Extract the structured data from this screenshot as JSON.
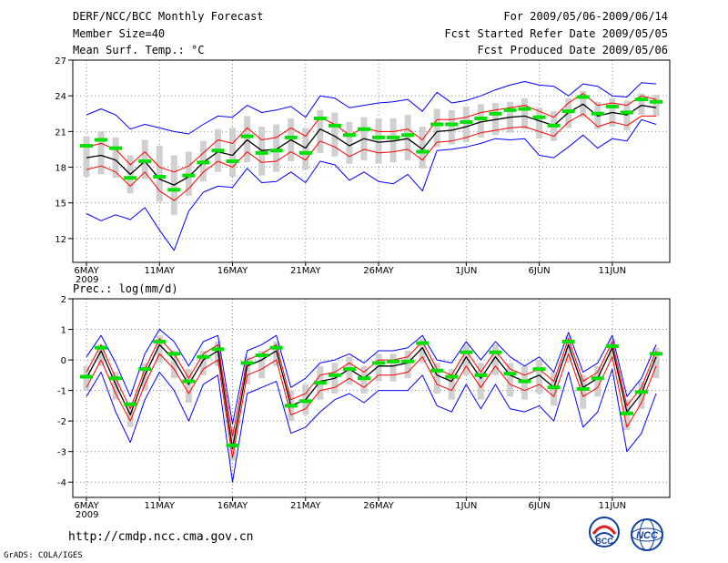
{
  "header": {
    "title": "DERF/NCC/BCC Monthly Forecast",
    "member": "Member Size=40",
    "variable": "Mean Surf. Temp.: °C",
    "forecast_range": "For 2009/05/06-2009/06/14",
    "refer_date": "Fcst Started Refer Date 2009/05/05",
    "produced_date": "Fcst Produced Date 2009/05/06"
  },
  "panel2_title": "Prec.: log(mm/d)",
  "footer": {
    "url": "http://cmdp.ncc.cma.gov.cn",
    "grads": "GrADS: COLA/IGES",
    "logo1": "BCC",
    "logo2": "NCC"
  },
  "colors": {
    "mean": "#000000",
    "std_band": "#ff0000",
    "envelope": "#0000ff",
    "ensemble_bar": "#d0d0d0",
    "observed": "#00e000"
  },
  "chart_data": [
    {
      "type": "line",
      "title": "Mean Surf. Temp.: °C",
      "x": [
        1,
        2,
        3,
        4,
        5,
        6,
        7,
        8,
        9,
        10,
        11,
        12,
        13,
        14,
        15,
        16,
        17,
        18,
        19,
        20,
        21,
        22,
        23,
        24,
        25,
        26,
        27,
        28,
        29,
        30,
        31,
        32,
        33,
        34,
        35,
        36,
        37,
        38,
        39,
        40
      ],
      "xticks": [
        "6MAY\n2009",
        "11MAY",
        "16MAY",
        "21MAY",
        "26MAY",
        "1JUN",
        "6JUN",
        "11JUN"
      ],
      "xtick_days": [
        1,
        6,
        11,
        16,
        21,
        27,
        32,
        37
      ],
      "ylim": [
        10,
        27
      ],
      "yticks": [
        12,
        15,
        18,
        21,
        24,
        27
      ],
      "grid": true,
      "series": [
        {
          "name": "ensemble_mean",
          "values": [
            18.8,
            19.0,
            18.6,
            17.4,
            18.5,
            17.0,
            16.5,
            17.2,
            18.4,
            19.3,
            19.0,
            20.3,
            19.4,
            19.5,
            20.3,
            19.6,
            21.2,
            20.6,
            19.8,
            20.4,
            20.1,
            20.2,
            20.4,
            19.5,
            21.0,
            21.1,
            21.4,
            21.8,
            22.0,
            22.2,
            22.3,
            21.9,
            21.5,
            22.6,
            23.3,
            22.3,
            22.6,
            22.4,
            23.2,
            23.0
          ]
        },
        {
          "name": "upper_std",
          "values": [
            19.7,
            20.0,
            19.5,
            18.2,
            19.3,
            18.0,
            17.6,
            18.1,
            19.2,
            20.3,
            20.0,
            21.3,
            20.3,
            20.5,
            21.3,
            20.6,
            22.2,
            21.6,
            20.7,
            21.3,
            21.0,
            21.0,
            21.2,
            20.3,
            22.0,
            22.0,
            22.2,
            22.6,
            22.8,
            23.0,
            23.2,
            22.7,
            22.2,
            23.4,
            24.2,
            23.2,
            23.4,
            23.2,
            24.0,
            23.7
          ]
        },
        {
          "name": "lower_std",
          "values": [
            17.8,
            18.1,
            17.6,
            16.4,
            17.6,
            16.0,
            15.2,
            16.2,
            17.6,
            18.5,
            18.0,
            19.3,
            18.4,
            18.5,
            19.3,
            18.6,
            20.2,
            19.7,
            18.9,
            19.5,
            19.2,
            19.3,
            19.5,
            18.6,
            20.1,
            20.2,
            20.5,
            20.9,
            21.1,
            21.3,
            21.4,
            21.0,
            20.6,
            21.8,
            22.5,
            21.4,
            21.8,
            21.5,
            22.3,
            22.3
          ]
        },
        {
          "name": "upper_envelope",
          "values": [
            22.4,
            22.9,
            22.4,
            21.2,
            21.6,
            21.3,
            21.0,
            20.8,
            21.6,
            22.3,
            22.2,
            23.2,
            22.6,
            22.8,
            23.1,
            22.2,
            24.0,
            23.8,
            23.0,
            23.2,
            23.4,
            23.5,
            23.7,
            22.7,
            24.3,
            23.4,
            23.6,
            24.0,
            24.5,
            24.9,
            25.2,
            24.9,
            24.8,
            24.0,
            25.0,
            24.8,
            24.0,
            23.9,
            25.1,
            25.0
          ]
        },
        {
          "name": "lower_envelope",
          "values": [
            14.1,
            13.5,
            14.0,
            13.6,
            14.6,
            12.7,
            11.0,
            14.3,
            15.9,
            16.4,
            16.3,
            17.9,
            16.7,
            16.8,
            17.6,
            16.7,
            18.5,
            18.2,
            16.9,
            17.6,
            16.8,
            16.6,
            17.4,
            16.0,
            19.4,
            19.5,
            19.7,
            20.0,
            20.4,
            20.3,
            20.4,
            19.0,
            18.8,
            19.7,
            20.7,
            19.6,
            20.4,
            20.2,
            22.0,
            21.6
          ]
        },
        {
          "name": "ensemble_range_top",
          "values": [
            20.6,
            21.0,
            20.5,
            19.0,
            20.3,
            19.8,
            19.0,
            19.3,
            20.2,
            21.2,
            21.3,
            22.3,
            21.4,
            21.6,
            22.1,
            21.3,
            22.8,
            22.6,
            21.8,
            22.2,
            22.1,
            22.1,
            22.4,
            21.4,
            22.9,
            22.8,
            23.1,
            23.3,
            23.4,
            23.5,
            23.8,
            23.0,
            22.7,
            23.8,
            24.4,
            23.5,
            23.8,
            23.6,
            24.2,
            24.1
          ]
        },
        {
          "name": "ensemble_range_bottom",
          "values": [
            17.2,
            17.4,
            17.1,
            15.8,
            17.0,
            15.1,
            14.0,
            15.6,
            16.8,
            17.6,
            17.2,
            18.4,
            17.3,
            17.6,
            18.5,
            17.8,
            19.2,
            18.9,
            18.3,
            18.6,
            18.3,
            18.4,
            18.6,
            17.9,
            19.7,
            19.9,
            20.1,
            20.5,
            20.7,
            20.9,
            21.2,
            20.4,
            20.2,
            21.3,
            22.2,
            21.2,
            21.4,
            21.1,
            22.4,
            22.3
          ]
        },
        {
          "name": "observed",
          "values": [
            19.8,
            20.3,
            19.6,
            17.1,
            18.5,
            17.2,
            16.1,
            17.3,
            18.4,
            19.4,
            18.5,
            20.6,
            19.2,
            19.4,
            20.5,
            19.2,
            22.1,
            21.5,
            20.7,
            21.2,
            20.5,
            20.5,
            20.7,
            19.3,
            21.6,
            21.6,
            21.8,
            22.1,
            22.5,
            22.8,
            22.9,
            22.2,
            21.5,
            22.7,
            23.9,
            22.5,
            23.1,
            22.6,
            23.7,
            23.5
          ]
        }
      ]
    },
    {
      "type": "line",
      "title": "Prec.: log(mm/d)",
      "x": [
        1,
        2,
        3,
        4,
        5,
        6,
        7,
        8,
        9,
        10,
        11,
        12,
        13,
        14,
        15,
        16,
        17,
        18,
        19,
        20,
        21,
        22,
        23,
        24,
        25,
        26,
        27,
        28,
        29,
        30,
        31,
        32,
        33,
        34,
        35,
        36,
        37,
        38,
        39,
        40
      ],
      "xticks": [
        "6MAY\n2009",
        "11MAY",
        "16MAY",
        "21MAY",
        "26MAY",
        "1JUN",
        "6JUN",
        "11JUN"
      ],
      "xtick_days": [
        1,
        6,
        11,
        16,
        21,
        27,
        32,
        37
      ],
      "ylim": [
        -4.5,
        2
      ],
      "yticks": [
        -4,
        -3,
        -2,
        -1,
        0,
        1,
        2
      ],
      "grid": true,
      "series": [
        {
          "name": "ensemble_mean",
          "values": [
            -0.6,
            0.3,
            -0.8,
            -1.8,
            -0.5,
            0.5,
            0.0,
            -0.8,
            0.0,
            0.3,
            -2.9,
            -0.2,
            0.0,
            0.3,
            -1.5,
            -1.3,
            -0.7,
            -0.6,
            -0.3,
            -0.6,
            -0.2,
            -0.2,
            -0.1,
            0.4,
            -0.5,
            -0.7,
            0.1,
            -0.6,
            0.1,
            -0.5,
            -0.7,
            -0.5,
            -0.9,
            0.5,
            -0.9,
            -0.6,
            0.4,
            -1.7,
            -1.1,
            0.1
          ]
        },
        {
          "name": "upper_std",
          "values": [
            -0.4,
            0.5,
            -0.6,
            -1.6,
            -0.3,
            0.7,
            0.2,
            -0.6,
            0.2,
            0.5,
            -2.5,
            0.0,
            0.2,
            0.5,
            -1.3,
            -1.1,
            -0.5,
            -0.4,
            -0.1,
            -0.4,
            0.0,
            0.0,
            0.1,
            0.6,
            -0.3,
            -0.5,
            0.3,
            -0.4,
            0.3,
            -0.3,
            -0.5,
            -0.3,
            -0.7,
            0.7,
            -0.7,
            -0.4,
            0.6,
            -1.5,
            -0.9,
            0.3
          ]
        },
        {
          "name": "lower_std",
          "values": [
            -0.9,
            0.0,
            -1.1,
            -2.0,
            -0.8,
            0.2,
            -0.3,
            -1.1,
            -0.3,
            0.0,
            -3.2,
            -0.5,
            -0.3,
            0.0,
            -1.8,
            -1.6,
            -1.0,
            -0.9,
            -0.6,
            -0.9,
            -0.5,
            -0.5,
            -0.4,
            0.1,
            -0.8,
            -1.0,
            -0.2,
            -0.9,
            -0.2,
            -0.8,
            -1.0,
            -0.8,
            -1.2,
            0.2,
            -1.2,
            -0.9,
            0.1,
            -2.2,
            -1.4,
            -0.2
          ]
        },
        {
          "name": "upper_envelope",
          "values": [
            0.1,
            0.8,
            -0.1,
            -1.2,
            0.2,
            1.0,
            0.6,
            -0.2,
            0.6,
            0.8,
            -2.1,
            0.3,
            0.5,
            0.8,
            -0.9,
            -0.6,
            -0.1,
            0.0,
            0.2,
            -0.1,
            0.3,
            0.3,
            0.4,
            0.8,
            0.0,
            -0.1,
            0.6,
            0.0,
            0.6,
            0.1,
            -0.2,
            0.1,
            -0.4,
            0.9,
            -0.4,
            -0.1,
            0.8,
            -1.2,
            -0.6,
            0.5
          ]
        },
        {
          "name": "lower_envelope",
          "values": [
            -1.2,
            -0.4,
            -1.7,
            -2.7,
            -1.3,
            -0.4,
            -1.0,
            -2.0,
            -0.8,
            -0.5,
            -4.0,
            -1.1,
            -0.9,
            -0.7,
            -2.4,
            -2.2,
            -1.7,
            -1.3,
            -1.1,
            -1.4,
            -1.0,
            -1.0,
            -1.0,
            -0.5,
            -1.5,
            -1.7,
            -0.8,
            -1.6,
            -0.8,
            -1.6,
            -1.7,
            -1.5,
            -2.0,
            -0.4,
            -2.2,
            -1.7,
            -0.3,
            -3.0,
            -2.4,
            -1.1
          ]
        },
        {
          "name": "ensemble_range_top",
          "values": [
            -0.2,
            0.5,
            -0.4,
            -1.4,
            -0.1,
            0.8,
            0.3,
            -0.3,
            0.3,
            0.6,
            -2.2,
            0.1,
            0.3,
            0.6,
            -1.0,
            -0.8,
            -0.2,
            -0.1,
            0.1,
            -0.2,
            0.2,
            0.2,
            0.3,
            0.7,
            -0.1,
            -0.3,
            0.5,
            -0.1,
            0.5,
            -0.1,
            -0.2,
            0.0,
            -0.4,
            0.8,
            -0.5,
            -0.2,
            0.7,
            -1.3,
            -0.7,
            0.4
          ]
        },
        {
          "name": "ensemble_range_bottom",
          "values": [
            -1.0,
            -0.2,
            -1.3,
            -2.2,
            -1.0,
            -0.1,
            -0.6,
            -1.4,
            -0.5,
            -0.2,
            -3.3,
            -0.8,
            -0.6,
            -0.2,
            -2.0,
            -1.8,
            -1.3,
            -1.1,
            -0.8,
            -1.1,
            -0.7,
            -0.7,
            -0.6,
            -0.1,
            -1.1,
            -1.3,
            -0.5,
            -1.3,
            -0.5,
            -1.2,
            -1.3,
            -1.1,
            -1.5,
            -0.1,
            -1.6,
            -1.2,
            0.0,
            -2.3,
            -1.6,
            -0.6
          ]
        },
        {
          "name": "observed",
          "values": [
            -0.55,
            0.4,
            -0.6,
            -1.45,
            -0.3,
            0.6,
            0.2,
            -0.7,
            0.1,
            0.35,
            -2.8,
            -0.1,
            0.15,
            0.4,
            -1.5,
            -1.35,
            -0.75,
            -0.5,
            -0.3,
            -0.6,
            -0.1,
            -0.05,
            -0.05,
            0.55,
            -0.35,
            -0.55,
            0.25,
            -0.5,
            0.25,
            -0.45,
            -0.7,
            -0.3,
            -0.9,
            0.6,
            -0.95,
            -0.6,
            0.45,
            -1.75,
            -1.05,
            0.2
          ]
        }
      ]
    }
  ]
}
